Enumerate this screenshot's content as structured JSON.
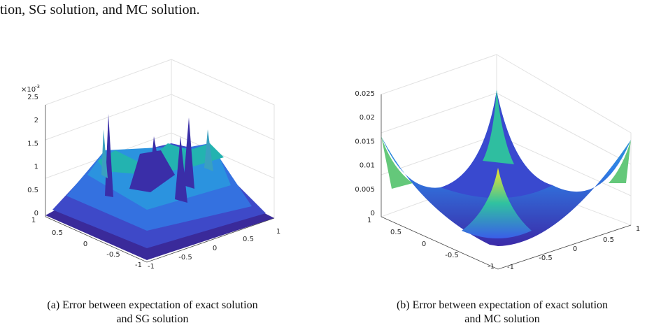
{
  "top_text": "tion, SG solution, and MC solution.",
  "figures": [
    {
      "exponent": "×10",
      "exponent_power": "-3",
      "z_ticks": [
        "0",
        "0.5",
        "1",
        "1.5",
        "2",
        "2.5"
      ],
      "y_ticks": [
        "1",
        "0.5",
        "0",
        "-0.5",
        "-1"
      ],
      "x_ticks": [
        "-1",
        "-0.5",
        "0",
        "0.5",
        "1"
      ],
      "caption": [
        "(a) Error between expectation of exact solution",
        "and SG solution"
      ]
    },
    {
      "z_ticks": [
        "0",
        "0.005",
        "0.01",
        "0.015",
        "0.02",
        "0.025"
      ],
      "y_ticks": [
        "1",
        "0.5",
        "0",
        "-0.5",
        "-1"
      ],
      "x_ticks": [
        "-1",
        "-0.5",
        "0",
        "0.5",
        "1"
      ],
      "caption": [
        "(b) Error between expectation of exact solution",
        "and MC solution"
      ]
    }
  ]
}
